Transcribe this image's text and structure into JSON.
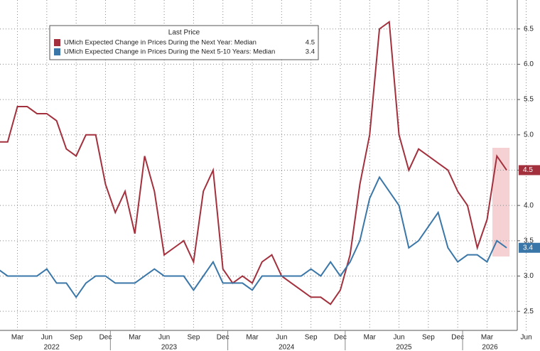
{
  "chart_data": {
    "type": "line",
    "legend_title": "Last Price",
    "categories": [
      null,
      null,
      "Mar",
      null,
      null,
      "Jun",
      null,
      null,
      "Sep",
      null,
      null,
      "Dec",
      null,
      null,
      "Mar",
      null,
      null,
      "Jun",
      null,
      null,
      "Sep",
      null,
      null,
      "Dec",
      null,
      null,
      "Mar",
      null,
      null,
      "Jun",
      null,
      null,
      "Sep",
      null,
      null,
      "Dec",
      null,
      null,
      "Mar",
      null,
      null,
      "Jun",
      null,
      null,
      "Sep",
      null,
      null,
      "Dec",
      null,
      null,
      "Mar",
      null,
      null
    ],
    "x_axis_extra_label": "Jun",
    "year_labels": [
      "2022",
      "2023",
      "2024",
      "2025",
      "2026"
    ],
    "series": [
      {
        "name": "UMich Expected Change in Prices During the Next Year: Median",
        "color": "#a3303d",
        "values": [
          4.9,
          4.9,
          5.4,
          5.4,
          5.3,
          5.3,
          5.2,
          4.8,
          4.7,
          5.0,
          5.0,
          4.3,
          3.9,
          4.2,
          3.6,
          4.7,
          4.2,
          3.3,
          3.4,
          3.5,
          3.2,
          4.2,
          4.5,
          3.1,
          2.9,
          3.0,
          2.9,
          3.2,
          3.3,
          3.0,
          2.9,
          2.8,
          2.7,
          2.7,
          2.6,
          2.8,
          3.3,
          4.3,
          5.0,
          6.5,
          6.6,
          5.0,
          4.5,
          4.8,
          4.7,
          4.6,
          4.5,
          4.2,
          4.0,
          3.4,
          3.8,
          4.7,
          4.5
        ]
      },
      {
        "name": "UMich Expected Change in Prices During the Next 5-10 Years: Median",
        "color": "#3a77a8",
        "values": [
          3.1,
          3.0,
          3.0,
          3.0,
          3.0,
          3.1,
          2.9,
          2.9,
          2.7,
          2.9,
          3.0,
          3.0,
          2.9,
          2.9,
          2.9,
          3.0,
          3.1,
          3.0,
          3.0,
          3.0,
          2.8,
          3.0,
          3.2,
          2.9,
          2.9,
          2.9,
          2.8,
          3.0,
          3.0,
          3.0,
          3.0,
          3.0,
          3.1,
          3.0,
          3.2,
          3.0,
          3.2,
          3.5,
          4.1,
          4.4,
          4.2,
          4.0,
          3.4,
          3.5,
          3.7,
          3.9,
          3.4,
          3.2,
          3.3,
          3.3,
          3.2,
          3.5,
          3.4
        ]
      }
    ],
    "ylim": [
      2.23,
      6.91
    ],
    "yticks": [
      2.5,
      {
        "value": 3,
        "label": "3.0"
      },
      3.5,
      {
        "value": 4,
        "label": "4.0"
      },
      4.5,
      {
        "value": 5,
        "label": "5.0"
      },
      5.5,
      {
        "value": 6,
        "label": "6.0"
      },
      6.5
    ],
    "y_axis_side": "right",
    "grid": true
  }
}
